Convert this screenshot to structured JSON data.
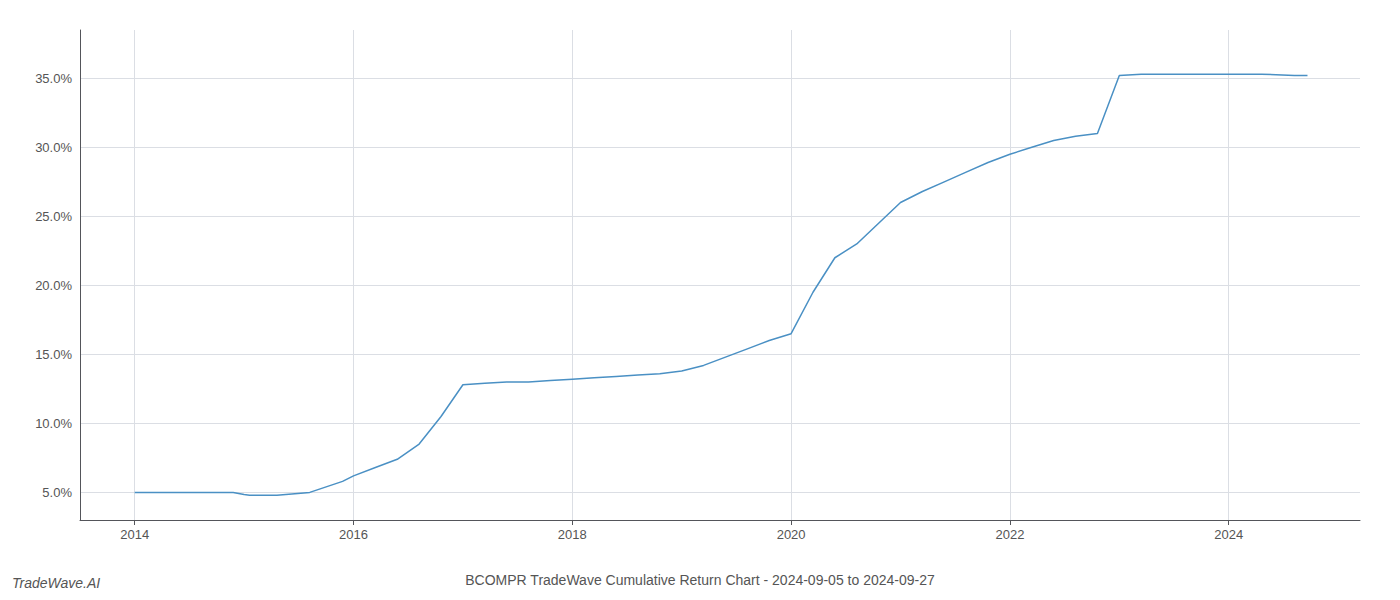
{
  "chart_data": {
    "type": "line",
    "title": "BCOMPR TradeWave Cumulative Return Chart - 2024-09-05 to 2024-09-27",
    "annotations": [
      "TradeWave.AI"
    ],
    "color": "#4a90c4",
    "grid": true,
    "x": [
      2014.0,
      2014.3,
      2014.6,
      2014.9,
      2015.0,
      2015.05,
      2015.3,
      2015.6,
      2015.9,
      2016.0,
      2016.2,
      2016.4,
      2016.6,
      2016.8,
      2017.0,
      2017.2,
      2017.4,
      2017.5,
      2017.6,
      2017.8,
      2018.0,
      2018.2,
      2018.4,
      2018.6,
      2018.8,
      2019.0,
      2019.2,
      2019.4,
      2019.6,
      2019.8,
      2020.0,
      2020.2,
      2020.4,
      2020.6,
      2020.8,
      2021.0,
      2021.2,
      2021.4,
      2021.6,
      2021.8,
      2022.0,
      2022.2,
      2022.4,
      2022.6,
      2022.8,
      2023.0,
      2023.2,
      2023.4,
      2023.6,
      2023.7,
      2023.8,
      2024.0,
      2024.3,
      2024.6,
      2024.72
    ],
    "values": [
      5.0,
      5.0,
      5.0,
      5.0,
      4.85,
      4.8,
      4.8,
      5.0,
      5.8,
      6.2,
      6.8,
      7.4,
      8.5,
      10.5,
      12.8,
      12.9,
      13.0,
      13.0,
      13.0,
      13.1,
      13.2,
      13.3,
      13.4,
      13.5,
      13.6,
      13.8,
      14.2,
      14.8,
      15.4,
      16.0,
      16.5,
      19.5,
      22.0,
      23.0,
      24.5,
      26.0,
      26.8,
      27.5,
      28.2,
      28.9,
      29.5,
      30.0,
      30.5,
      30.8,
      31.0,
      35.2,
      35.3,
      35.3,
      35.3,
      35.3,
      35.3,
      35.3,
      35.3,
      35.2,
      35.2
    ],
    "xlim": [
      2013.5,
      2025.2
    ],
    "ylim": [
      3.0,
      38.5
    ],
    "xticks": [
      2014,
      2016,
      2018,
      2020,
      2022,
      2024
    ],
    "yticks": [
      {
        "value": 5.0,
        "label": "5.0%"
      },
      {
        "value": 10.0,
        "label": "10.0%"
      },
      {
        "value": 15.0,
        "label": "15.0%"
      },
      {
        "value": 20.0,
        "label": "20.0%"
      },
      {
        "value": 25.0,
        "label": "25.0%"
      },
      {
        "value": 30.0,
        "label": "30.0%"
      },
      {
        "value": 35.0,
        "label": "35.0%"
      }
    ]
  }
}
